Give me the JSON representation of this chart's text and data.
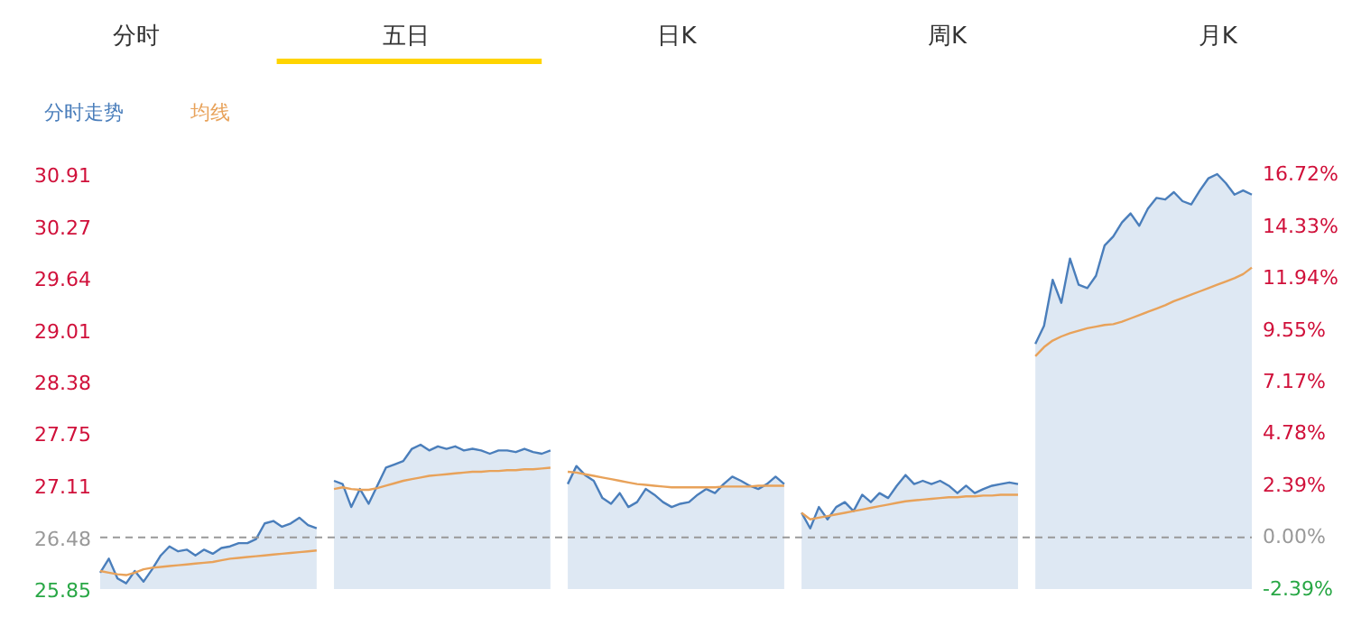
{
  "chart_data": {
    "type": "line",
    "categories": [
      null,
      null,
      null,
      null,
      null,
      null,
      null,
      null,
      null,
      null,
      null,
      null,
      null,
      null,
      null,
      null,
      null,
      null,
      null,
      null,
      null,
      null,
      null,
      null,
      null,
      null,
      null,
      null,
      null,
      null,
      null,
      null,
      null,
      null,
      null,
      null,
      null,
      null,
      null,
      null,
      null,
      null,
      null,
      null,
      null,
      null,
      null,
      null,
      null,
      null,
      null,
      null,
      null,
      null,
      null,
      null,
      null,
      null,
      null,
      null,
      null,
      null,
      null,
      null,
      null,
      null,
      null,
      null,
      null,
      null,
      null,
      null,
      null,
      null,
      null,
      null,
      null,
      null,
      null,
      null,
      null,
      null,
      null,
      null,
      null,
      null,
      null,
      null,
      null,
      null,
      null,
      null,
      null,
      null,
      null,
      null,
      null,
      null,
      null,
      null,
      null,
      null,
      null,
      null,
      null,
      null,
      null,
      null,
      null,
      null,
      null,
      null,
      null,
      null,
      null,
      null,
      null,
      null,
      null,
      null,
      null,
      null,
      null,
      null,
      null,
      null,
      null,
      null,
      null,
      null,
      null,
      null,
      null,
      null
    ],
    "series": [
      {
        "name": "分时走势",
        "type": "area",
        "color": "#4a7ebb",
        "values": [
          26.05,
          26.22,
          25.98,
          25.92,
          26.07,
          25.94,
          26.09,
          26.26,
          26.37,
          26.31,
          26.33,
          26.26,
          26.33,
          26.28,
          26.35,
          26.37,
          26.41,
          26.41,
          26.46,
          26.65,
          26.68,
          26.61,
          26.65,
          26.72,
          26.63,
          26.59,
          null,
          27.17,
          27.13,
          26.85,
          27.07,
          26.89,
          27.11,
          27.33,
          27.37,
          27.41,
          27.56,
          27.61,
          27.54,
          27.59,
          27.56,
          27.59,
          27.54,
          27.56,
          27.54,
          27.5,
          27.54,
          27.54,
          27.52,
          27.56,
          27.52,
          27.5,
          27.54,
          null,
          27.13,
          27.35,
          27.24,
          27.17,
          26.96,
          26.89,
          27.02,
          26.85,
          26.91,
          27.07,
          27.0,
          26.91,
          26.85,
          26.89,
          26.91,
          27.0,
          27.07,
          27.02,
          27.13,
          27.22,
          27.17,
          27.11,
          27.07,
          27.13,
          27.22,
          27.13,
          null,
          26.78,
          26.59,
          26.85,
          26.7,
          26.85,
          26.91,
          26.8,
          27.0,
          26.91,
          27.02,
          26.96,
          27.11,
          27.24,
          27.13,
          27.17,
          27.13,
          27.17,
          27.11,
          27.02,
          27.11,
          27.02,
          27.07,
          27.11,
          27.13,
          27.15,
          27.13,
          null,
          28.84,
          29.06,
          29.62,
          29.34,
          29.88,
          29.56,
          29.52,
          29.67,
          30.04,
          30.15,
          30.32,
          30.43,
          30.28,
          30.49,
          30.62,
          30.6,
          30.69,
          30.58,
          30.54,
          30.71,
          30.86,
          30.91,
          30.8,
          30.66,
          30.71,
          30.66
        ]
      },
      {
        "name": "均线",
        "color": "#e8a25a",
        "values": [
          26.07,
          26.05,
          26.03,
          26.02,
          26.05,
          26.09,
          26.11,
          26.12,
          26.13,
          26.14,
          26.15,
          26.16,
          26.17,
          26.18,
          26.2,
          26.22,
          26.23,
          26.24,
          26.25,
          26.26,
          26.27,
          26.28,
          26.29,
          26.3,
          26.31,
          26.32,
          null,
          27.07,
          27.09,
          27.07,
          27.06,
          27.06,
          27.08,
          27.11,
          27.14,
          27.17,
          27.19,
          27.21,
          27.23,
          27.24,
          27.25,
          27.26,
          27.27,
          27.28,
          27.28,
          27.29,
          27.29,
          27.3,
          27.3,
          27.31,
          27.31,
          27.32,
          27.33,
          null,
          27.28,
          27.27,
          27.25,
          27.23,
          27.21,
          27.19,
          27.17,
          27.15,
          27.13,
          27.12,
          27.11,
          27.1,
          27.09,
          27.09,
          27.09,
          27.09,
          27.09,
          27.09,
          27.1,
          27.1,
          27.1,
          27.1,
          27.11,
          27.11,
          27.11,
          27.11,
          null,
          26.78,
          26.7,
          26.72,
          26.74,
          26.76,
          26.78,
          26.8,
          26.82,
          26.84,
          26.86,
          26.88,
          26.9,
          26.92,
          26.93,
          26.94,
          26.95,
          26.96,
          26.97,
          26.97,
          26.98,
          26.98,
          26.99,
          26.99,
          27.0,
          27.0,
          27.0,
          null,
          28.69,
          28.8,
          28.88,
          28.93,
          28.97,
          29.0,
          29.03,
          29.05,
          29.07,
          29.08,
          29.11,
          29.15,
          29.19,
          29.23,
          29.27,
          29.31,
          29.36,
          29.4,
          29.44,
          29.48,
          29.52,
          29.56,
          29.6,
          29.64,
          29.69,
          29.77
        ]
      }
    ],
    "ylim": [
      25.85,
      30.91
    ],
    "yticks": [
      25.85,
      26.48,
      27.11,
      27.75,
      28.38,
      29.01,
      29.64,
      30.27,
      30.91
    ],
    "y2lim": [
      -2.39,
      16.72
    ],
    "y2ticks": [
      {
        "value": -2.39,
        "label": "-2.39%"
      },
      {
        "value": 0,
        "label": "0.00%"
      },
      {
        "value": 2.39,
        "label": "2.39%"
      },
      {
        "value": 4.78,
        "label": "4.78%"
      },
      {
        "value": 7.17,
        "label": "7.17%"
      },
      {
        "value": 9.55,
        "label": "9.55%"
      },
      {
        "value": 11.94,
        "label": "11.94%"
      },
      {
        "value": 14.33,
        "label": "14.33%"
      },
      {
        "value": 16.72,
        "label": "16.72%"
      }
    ],
    "ref_lines": [
      {
        "axis": "y",
        "value": 26.48,
        "color": "#999999",
        "line_style": "dashed"
      }
    ],
    "annotations": [
      "分时",
      "五日",
      "日K",
      "周K",
      "月K"
    ],
    "legend": "top left",
    "grid": false
  }
}
